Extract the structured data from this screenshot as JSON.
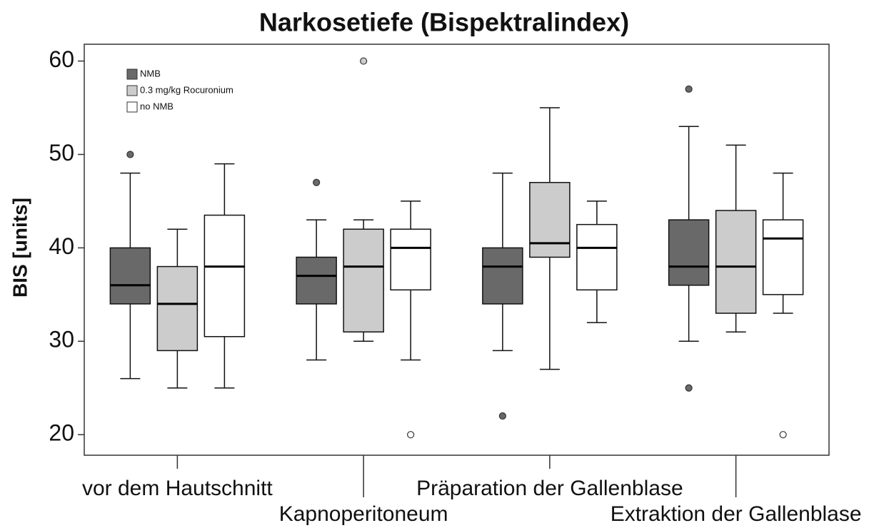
{
  "chart_data": {
    "type": "box",
    "title": "Narkosetiefe (Bispektralindex)",
    "y_label": "BIS [units]",
    "categories": [
      "vor dem Hautschnitt",
      "Kapnoperitoneum",
      "Präparation der Gallenblase",
      "Extraktion der Gallenblase"
    ],
    "ylim": [
      17.8,
      61.8
    ],
    "yticks": [
      20,
      30,
      40,
      50,
      60
    ],
    "legend": "upper left",
    "series": [
      {
        "name": "NMB",
        "color": "#696969",
        "boxes": [
          {
            "min": 26,
            "q1": 34,
            "median": 36,
            "q3": 40,
            "max": 48,
            "outliers": [
              50
            ]
          },
          {
            "min": 28,
            "q1": 34,
            "median": 37,
            "q3": 39,
            "max": 43,
            "outliers": [
              47
            ]
          },
          {
            "min": 29,
            "q1": 34,
            "median": 38,
            "q3": 40,
            "max": 48,
            "outliers": [
              22
            ]
          },
          {
            "min": 30,
            "q1": 36,
            "median": 38,
            "q3": 43,
            "max": 53,
            "outliers": [
              57,
              25
            ]
          }
        ]
      },
      {
        "name": "0.3 mg/kg Rocuronium",
        "color": "#cccccc",
        "boxes": [
          {
            "min": 25,
            "q1": 29,
            "median": 34,
            "q3": 38,
            "max": 42,
            "outliers": []
          },
          {
            "min": 30,
            "q1": 31,
            "median": 38,
            "q3": 42,
            "max": 43,
            "outliers": [
              60
            ]
          },
          {
            "min": 27,
            "q1": 39,
            "median": 40.5,
            "q3": 47,
            "max": 55,
            "outliers": []
          },
          {
            "min": 31,
            "q1": 33,
            "median": 38,
            "q3": 44,
            "max": 51,
            "outliers": []
          }
        ]
      },
      {
        "name": "no NMB",
        "color": "#ffffff",
        "boxes": [
          {
            "min": 25,
            "q1": 30.5,
            "median": 38,
            "q3": 43.5,
            "max": 49,
            "outliers": []
          },
          {
            "min": 28,
            "q1": 35.5,
            "median": 40,
            "q3": 42,
            "max": 45,
            "outliers": [
              20
            ]
          },
          {
            "min": 32,
            "q1": 35.5,
            "median": 40,
            "q3": 42.5,
            "max": 45,
            "outliers": []
          },
          {
            "min": 33,
            "q1": 35,
            "median": 41,
            "q3": 43,
            "max": 48,
            "outliers": [
              20
            ]
          }
        ]
      }
    ]
  }
}
